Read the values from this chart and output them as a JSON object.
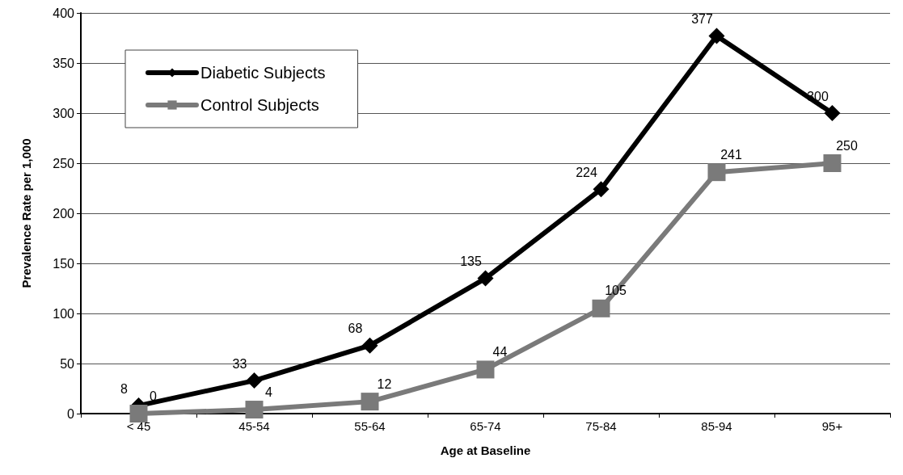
{
  "chart_data": {
    "type": "line",
    "xlabel": "Age at Baseline",
    "ylabel": "Prevalence Rate per 1,000",
    "categories": [
      "< 45",
      "45-54",
      "55-64",
      "65-74",
      "75-84",
      "85-94",
      "95+"
    ],
    "series": [
      {
        "name": "Diabetic Subjects",
        "color": "#000000",
        "marker": "diamond",
        "values": [
          8,
          33,
          68,
          135,
          224,
          377,
          300
        ]
      },
      {
        "name": "Control Subjects",
        "color": "#7a7a7a",
        "marker": "square",
        "values": [
          0,
          4,
          12,
          44,
          105,
          241,
          250
        ]
      }
    ],
    "ylim": [
      0,
      400
    ],
    "yticks": [
      0,
      50,
      100,
      150,
      200,
      250,
      300,
      350,
      400
    ],
    "grid": "y",
    "legend": "top left",
    "data_labels": true,
    "line_style": "solid"
  }
}
